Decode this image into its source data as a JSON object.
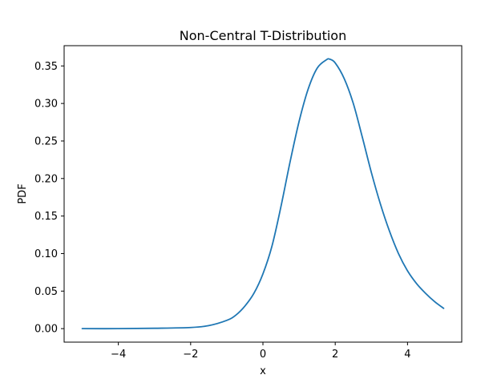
{
  "chart_data": {
    "type": "line",
    "title": "Non-Central T-Distribution",
    "xlabel": "x",
    "ylabel": "PDF",
    "xlim": [
      -5.5,
      5.5
    ],
    "ylim": [
      -0.018,
      0.377
    ],
    "xticks": [
      -4,
      -2,
      0,
      2,
      4
    ],
    "xtick_labels": [
      "−4",
      "−2",
      "0",
      "2",
      "4"
    ],
    "yticks": [
      0.0,
      0.05,
      0.1,
      0.15,
      0.2,
      0.25,
      0.3,
      0.35
    ],
    "ytick_labels": [
      "0.00",
      "0.05",
      "0.10",
      "0.15",
      "0.20",
      "0.25",
      "0.30",
      "0.35"
    ],
    "grid": false,
    "series": [
      {
        "color": "#1f77b4",
        "x": [
          -5.0,
          -4.0,
          -3.0,
          -2.0,
          -1.5,
          -1.0,
          -0.75,
          -0.5,
          -0.25,
          0.0,
          0.25,
          0.5,
          0.75,
          1.0,
          1.25,
          1.5,
          1.75,
          1.85,
          2.0,
          2.25,
          2.5,
          2.75,
          3.0,
          3.25,
          3.5,
          3.75,
          4.0,
          4.25,
          4.5,
          4.75,
          5.0
        ],
        "y": [
          0.0,
          0.0,
          0.0005,
          0.0015,
          0.004,
          0.011,
          0.018,
          0.03,
          0.047,
          0.073,
          0.11,
          0.163,
          0.222,
          0.276,
          0.319,
          0.347,
          0.358,
          0.359,
          0.354,
          0.333,
          0.3,
          0.255,
          0.208,
          0.166,
          0.13,
          0.1,
          0.077,
          0.06,
          0.047,
          0.036,
          0.027
        ]
      }
    ]
  }
}
